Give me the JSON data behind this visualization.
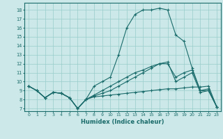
{
  "xlabel": "Humidex (Indice chaleur)",
  "xlim": [
    -0.5,
    23.5
  ],
  "ylim": [
    6.7,
    18.8
  ],
  "yticks": [
    7,
    8,
    9,
    10,
    11,
    12,
    13,
    14,
    15,
    16,
    17,
    18
  ],
  "xticks": [
    0,
    1,
    2,
    3,
    4,
    5,
    6,
    7,
    8,
    9,
    10,
    11,
    12,
    13,
    14,
    15,
    16,
    17,
    18,
    19,
    20,
    21,
    22,
    23
  ],
  "bg_color": "#cce8e8",
  "line_color": "#1a6b6b",
  "grid_color": "#99cccc",
  "series": [
    [
      9.5,
      9.0,
      8.2,
      8.8,
      8.7,
      8.2,
      7.0,
      8.0,
      9.5,
      10.0,
      10.5,
      13.0,
      16.0,
      17.5,
      18.0,
      18.0,
      18.2,
      18.0,
      15.2,
      14.5,
      11.5,
      9.0,
      9.0,
      7.2
    ],
    [
      9.5,
      9.0,
      8.2,
      8.8,
      8.7,
      8.2,
      7.0,
      8.0,
      8.3,
      8.4,
      8.5,
      8.6,
      8.7,
      8.8,
      8.9,
      9.0,
      9.1,
      9.2,
      9.2,
      9.3,
      9.4,
      9.4,
      9.5,
      7.2
    ],
    [
      9.5,
      9.0,
      8.2,
      8.8,
      8.7,
      8.2,
      7.0,
      8.0,
      8.4,
      8.7,
      9.0,
      9.5,
      10.0,
      10.5,
      11.0,
      11.5,
      12.0,
      12.2,
      10.0,
      10.5,
      11.0,
      8.8,
      9.0,
      7.2
    ],
    [
      9.5,
      9.0,
      8.2,
      8.8,
      8.7,
      8.2,
      7.0,
      8.0,
      8.5,
      9.0,
      9.5,
      10.0,
      10.5,
      11.0,
      11.3,
      11.7,
      12.0,
      12.0,
      10.5,
      11.0,
      11.3,
      9.0,
      9.2,
      7.2
    ]
  ]
}
